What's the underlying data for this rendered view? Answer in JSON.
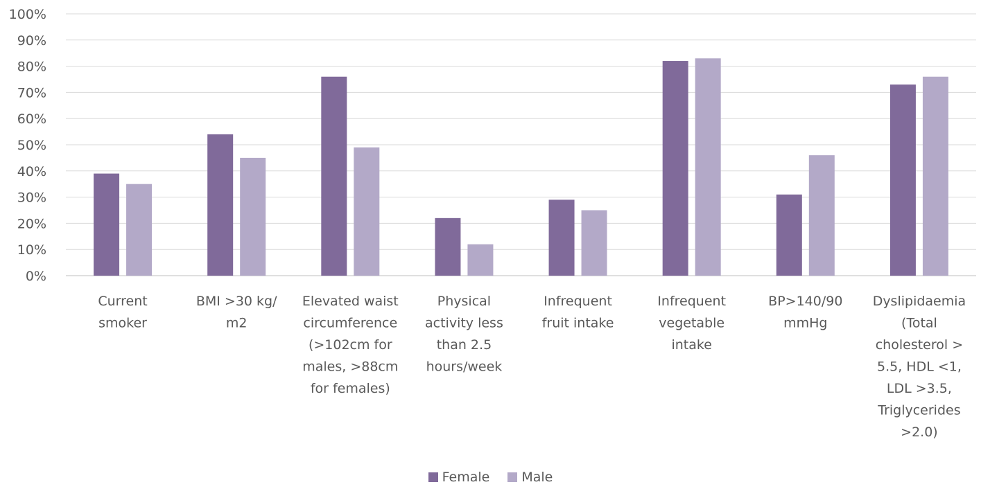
{
  "chart_data": {
    "type": "bar",
    "categories": [
      "Current smoker",
      "BMI >30 kg/ m2",
      "Elevated waist circumference (>102cm for males, >88cm for females)",
      "Physical activity  less than 2.5 hours/week",
      "Infrequent fruit intake",
      "Infrequent vegetable intake",
      "BP>140/90 mmHg",
      "Dyslipidaemia (Total cholesterol > 5.5, HDL  <1, LDL >3.5, Triglycerides >2.0)"
    ],
    "category_lines": [
      [
        "Current",
        "smoker"
      ],
      [
        "BMI >30 kg/",
        "m2"
      ],
      [
        "Elevated waist",
        "circumference",
        "(>102cm for",
        "males, >88cm",
        "for females)"
      ],
      [
        "Physical",
        "activity  less",
        "than 2.5",
        "hours/week"
      ],
      [
        "Infrequent",
        "fruit intake"
      ],
      [
        "Infrequent",
        "vegetable",
        "intake"
      ],
      [
        "BP>140/90",
        "mmHg"
      ],
      [
        "Dyslipidaemia",
        "(Total",
        "cholesterol >",
        "5.5, HDL  <1,",
        "LDL >3.5,",
        "Triglycerides",
        ">2.0)"
      ]
    ],
    "series": [
      {
        "name": "Female",
        "color": "#806a9a",
        "values": [
          39,
          54,
          76,
          22,
          29,
          82,
          31,
          73
        ]
      },
      {
        "name": "Male",
        "color": "#b3a9c8",
        "values": [
          35,
          45,
          49,
          12,
          25,
          83,
          46,
          76
        ]
      }
    ],
    "ylim": [
      0,
      100
    ],
    "yticks": [
      "0%",
      "10%",
      "20%",
      "30%",
      "40%",
      "50%",
      "60%",
      "70%",
      "80%",
      "90%",
      "100%"
    ],
    "grid": true,
    "legend_position": "bottom"
  }
}
